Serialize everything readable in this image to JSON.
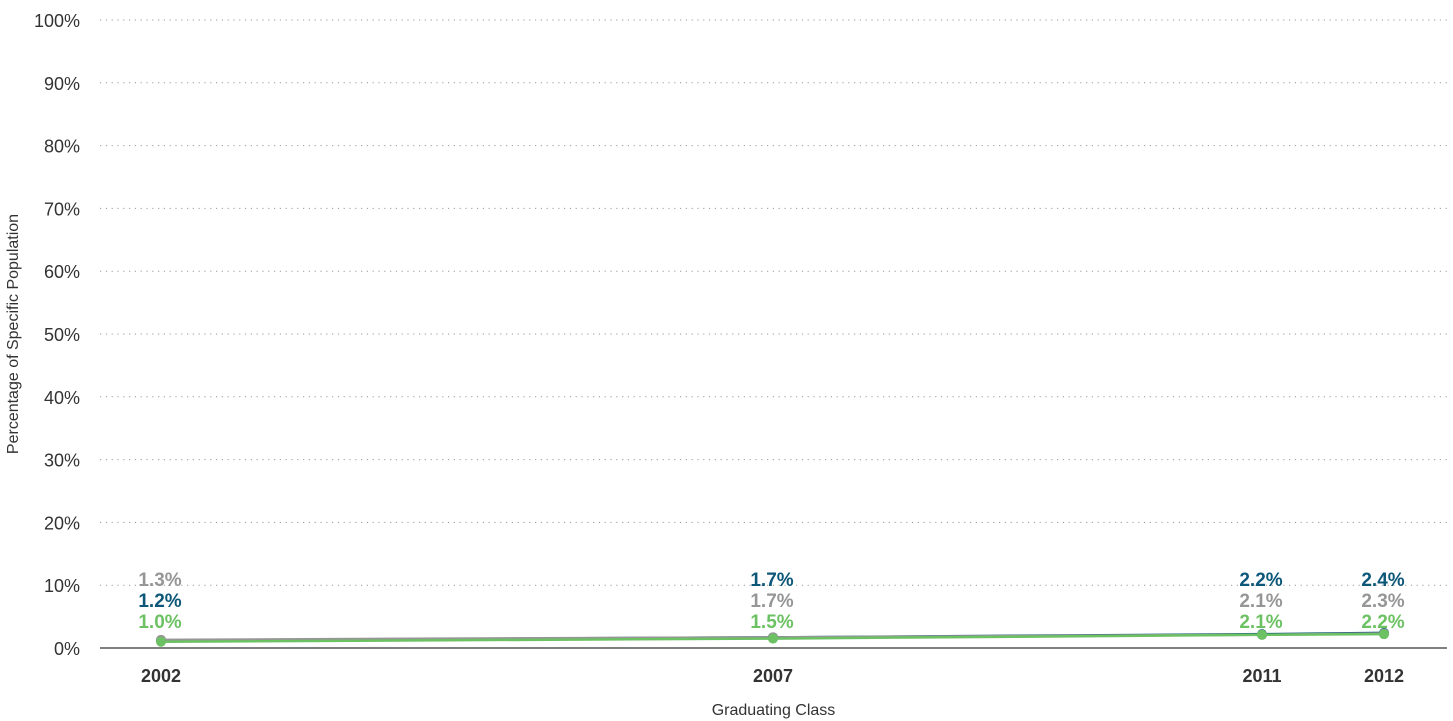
{
  "chart_data": {
    "type": "line",
    "title": "",
    "xlabel": "Graduating Class",
    "ylabel": "Percentage of Specific Population",
    "ylim": [
      0,
      100
    ],
    "y_ticks": [
      0,
      10,
      20,
      30,
      40,
      50,
      60,
      70,
      80,
      90,
      100
    ],
    "y_tick_labels": [
      "0%",
      "10%",
      "20%",
      "30%",
      "40%",
      "50%",
      "60%",
      "70%",
      "80%",
      "90%",
      "100%"
    ],
    "x": [
      2002,
      2007,
      2011,
      2012
    ],
    "x_tick_labels": [
      "2002",
      "2007",
      "2011",
      "2012"
    ],
    "grid": true,
    "legend": "none",
    "series": [
      {
        "color": "#0d5779",
        "values": [
          1.2,
          1.7,
          2.2,
          2.4
        ],
        "labels": [
          "1.2%",
          "1.7%",
          "2.2%",
          "2.4%"
        ]
      },
      {
        "color": "#969696",
        "values": [
          1.3,
          1.7,
          2.1,
          2.3
        ],
        "labels": [
          "1.3%",
          "1.7%",
          "2.1%",
          "2.3%"
        ]
      },
      {
        "color": "#6cc163",
        "values": [
          1.0,
          1.5,
          2.1,
          2.2
        ],
        "labels": [
          "1.0%",
          "1.5%",
          "2.1%",
          "2.2%"
        ]
      }
    ]
  }
}
